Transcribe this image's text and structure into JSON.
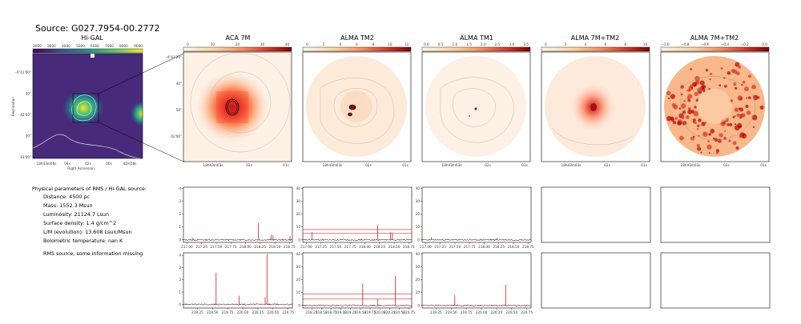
{
  "title": "Source: G027.7954-00.2772",
  "panels": [
    {
      "title": "Hi-GAL",
      "colorbar_ticks": [
        "2000",
        "3000",
        "4000",
        "5000",
        "6000",
        "7000",
        "8000",
        "9000"
      ]
    },
    {
      "title": "ACA 7M",
      "colorbar_ticks": [
        "0",
        "10",
        "20",
        "30",
        "40"
      ]
    },
    {
      "title": "ALMA TM2",
      "colorbar_ticks": [
        "0",
        "2",
        "4",
        "6",
        "8",
        "10",
        "12"
      ]
    },
    {
      "title": "ALMA TM1",
      "colorbar_ticks": [
        "0.0",
        "0.5",
        "1.0",
        "1.5",
        "2.0",
        "2.5",
        "3.0",
        "3.5"
      ]
    },
    {
      "title": "ALMA 7M+TM2",
      "colorbar_ticks": [
        "0",
        "2",
        "4",
        "6",
        "8",
        "10"
      ]
    },
    {
      "title": "ALMA 7M+TM2",
      "colorbar_ticks": [
        "−1.0",
        "−0.8",
        "−0.6",
        "−0.4",
        "−0.2",
        "0.0"
      ]
    }
  ],
  "higal_axes": {
    "ylabel": "Declination",
    "xlabel": "Right Ascension",
    "yticks": [
      "-4°41'00\"",
      "30\"",
      "42'00\"",
      "30\"",
      "43'00\""
    ],
    "xticks": [
      "18h43m06s",
      "04s",
      "02s",
      "00s",
      "42m58s"
    ]
  },
  "cutout_axes": {
    "yticks": [
      "-4°41'20\"",
      "40\"",
      "50\"",
      "42'00\""
    ],
    "xticks": [
      "18h43m03s",
      "02s",
      "01s"
    ]
  },
  "info": {
    "heading": "Physical parameters of RMS / Hi-GAL source:",
    "lines": [
      "Distance: 4500 pc",
      "Mass: 1552.3 Msun",
      "Luminosity: 21124.7 Lsun",
      "Surface density: 1.4 g/cm^2",
      "L/M (evolution): 13.608 Lsun/Msun",
      "Bolometric temperature: nan K"
    ],
    "note": "RMS source, some information missing"
  },
  "chart_data": [
    {
      "type": "line",
      "panel": "ACA 7M spectrum, upper band",
      "xlim": [
        216.94,
        218.8
      ],
      "ylim": [
        -0.2,
        4.1
      ],
      "yticks": [
        "0",
        "1",
        "2",
        "3",
        "4"
      ],
      "xticks": [
        "217.00",
        "217.25",
        "217.50",
        "217.75",
        "218.00",
        "218.25",
        "218.50",
        "218.75"
      ],
      "hlines": [],
      "peaks": [
        {
          "x": 218.22,
          "y": 1.3
        },
        {
          "x": 218.44,
          "y": 0.4
        },
        {
          "x": 218.47,
          "y": 0.35
        },
        {
          "x": 217.1,
          "y": 0.15
        },
        {
          "x": 218.76,
          "y": 0.3
        }
      ]
    },
    {
      "type": "line",
      "panel": "ALMA TM2 spectrum, upper band",
      "xlim": [
        216.94,
        218.8
      ],
      "ylim": [
        -2,
        41
      ],
      "yticks": [
        "0",
        "10",
        "20",
        "30",
        "40"
      ],
      "xticks": [
        "217.00",
        "217.25",
        "217.50",
        "217.75",
        "218.00",
        "218.25",
        "218.50",
        "218.75"
      ],
      "hlines": [
        5,
        8
      ],
      "peaks": [
        {
          "x": 218.22,
          "y": 11
        },
        {
          "x": 217.1,
          "y": 6
        },
        {
          "x": 218.44,
          "y": 6
        },
        {
          "x": 218.47,
          "y": 5
        }
      ]
    },
    {
      "type": "line",
      "panel": "ALMA TM1 spectrum, upper band",
      "xlim": [
        216.94,
        218.8
      ],
      "ylim": [
        -2,
        41
      ],
      "yticks": [
        "0",
        "10",
        "20",
        "30",
        "40"
      ],
      "xticks": [
        "217.00",
        "217.25",
        "217.50",
        "217.75",
        "218.00",
        "218.25",
        "218.50",
        "218.75"
      ],
      "hlines": [],
      "peaks": [
        {
          "x": 217.1,
          "y": 2
        },
        {
          "x": 218.22,
          "y": 1.5
        }
      ]
    },
    {
      "type": "line",
      "panel": "ACA 7M spectrum, lower band",
      "xlim": [
        219.02,
        220.82
      ],
      "ylim": [
        -0.3,
        4.2
      ],
      "yticks": [
        "0",
        "1",
        "2",
        "3",
        "4"
      ],
      "xticks": [
        "219.25",
        "219.50",
        "219.75",
        "220.00",
        "220.25",
        "220.50",
        "220.75"
      ],
      "hlines": [],
      "peaks": [
        {
          "x": 219.56,
          "y": 2.6
        },
        {
          "x": 219.94,
          "y": 0.7
        },
        {
          "x": 220.4,
          "y": 4.1
        },
        {
          "x": 220.37,
          "y": 0.6
        }
      ]
    },
    {
      "type": "line",
      "panel": "ALMA TM2 spectrum, lower band",
      "xlim": [
        218.02,
        220.82
      ],
      "ylim": [
        -2,
        41
      ],
      "yticks": [
        "0",
        "10",
        "20",
        "30",
        "40"
      ],
      "xticks": [
        "218.25",
        "218.50",
        "218.75",
        "219.00",
        "219.25",
        "219.50",
        "219.75",
        "220.00",
        "220.25",
        "220.50",
        "220.75"
      ],
      "hlines": [
        5,
        9
      ],
      "peaks": [
        {
          "x": 219.56,
          "y": 17
        },
        {
          "x": 220.4,
          "y": 23
        },
        {
          "x": 219.94,
          "y": 5
        }
      ]
    },
    {
      "type": "line",
      "panel": "ALMA TM1 spectrum, lower band",
      "xlim": [
        219.02,
        220.82
      ],
      "ylim": [
        -2,
        41
      ],
      "yticks": [
        "0",
        "10",
        "20",
        "30",
        "40"
      ],
      "xticks": [
        "219.25",
        "219.50",
        "219.75",
        "220.00",
        "220.25",
        "220.50",
        "220.75"
      ],
      "hlines": [],
      "peaks": [
        {
          "x": 219.56,
          "y": 8
        },
        {
          "x": 220.4,
          "y": 16
        }
      ]
    }
  ]
}
